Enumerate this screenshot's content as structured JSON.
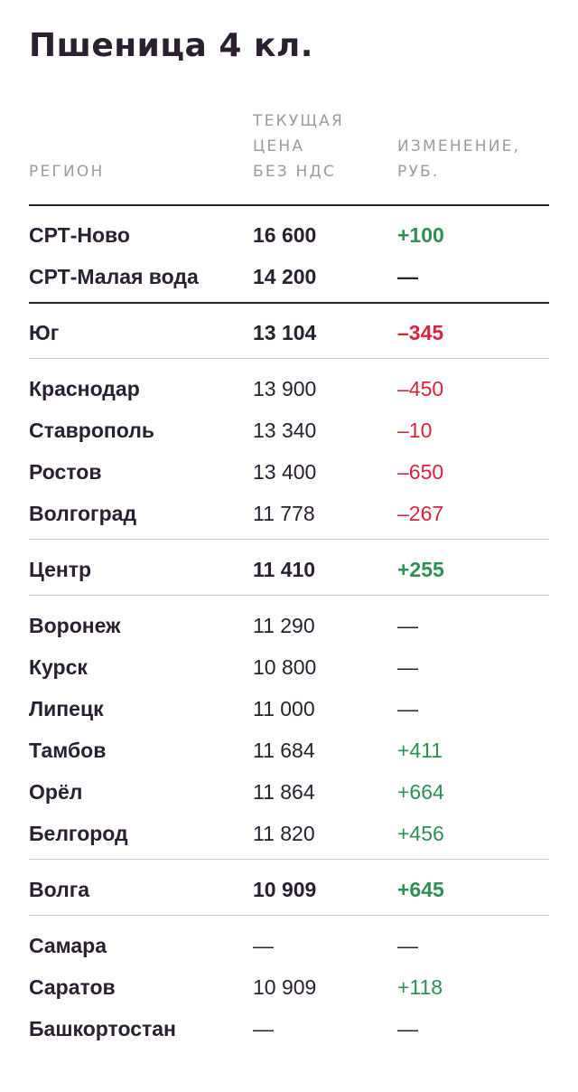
{
  "title": "Пшеница 4 кл.",
  "headers": {
    "region": "РЕГИОН",
    "price_line1": "ТЕКУЩАЯ",
    "price_line2": "ЦЕНА",
    "price_line3": "БЕЗ НДС",
    "change_line1": "ИЗМЕНЕНИЕ,",
    "change_line2": "РУБ."
  },
  "colors": {
    "positive": "#2f8f55",
    "negative": "#d8243c",
    "text": "#2a2030",
    "header": "#9a9aa2"
  },
  "rows": [
    {
      "region": "СРТ-Ново",
      "price": "16 600",
      "change": "+100",
      "bold": true,
      "trend": "pos"
    },
    {
      "region": "СРТ-Малая вода",
      "price": "14 200",
      "change": "—",
      "bold": true,
      "trend": "neu"
    },
    {
      "region": "Юг",
      "price": "13 104",
      "change": "–345",
      "bold": true,
      "trend": "neg"
    },
    {
      "region": "Краснодар",
      "price": "13 900",
      "change": "–450",
      "bold": false,
      "trend": "neg"
    },
    {
      "region": "Ставрополь",
      "price": "13 340",
      "change": "–10",
      "bold": false,
      "trend": "neg"
    },
    {
      "region": "Ростов",
      "price": "13 400",
      "change": "–650",
      "bold": false,
      "trend": "neg"
    },
    {
      "region": "Волгоград",
      "price": "11 778",
      "change": "–267",
      "bold": false,
      "trend": "neg"
    },
    {
      "region": "Центр",
      "price": "11 410",
      "change": "+255",
      "bold": true,
      "trend": "pos"
    },
    {
      "region": "Воронеж",
      "price": "11 290",
      "change": "—",
      "bold": false,
      "trend": "neu"
    },
    {
      "region": "Курск",
      "price": "10 800",
      "change": "—",
      "bold": false,
      "trend": "neu"
    },
    {
      "region": "Липецк",
      "price": "11 000",
      "change": "—",
      "bold": false,
      "trend": "neu"
    },
    {
      "region": "Тамбов",
      "price": "11 684",
      "change": "+411",
      "bold": false,
      "trend": "pos"
    },
    {
      "region": "Орёл",
      "price": "11 864",
      "change": "+664",
      "bold": false,
      "trend": "pos"
    },
    {
      "region": "Белгород",
      "price": "11 820",
      "change": "+456",
      "bold": false,
      "trend": "pos"
    },
    {
      "region": "Волга",
      "price": "10 909",
      "change": "+645",
      "bold": true,
      "trend": "pos"
    },
    {
      "region": "Самара",
      "price": "—",
      "change": "—",
      "bold": false,
      "trend": "neu"
    },
    {
      "region": "Саратов",
      "price": "10 909",
      "change": "+118",
      "bold": false,
      "trend": "pos"
    },
    {
      "region": "Башкортостан",
      "price": "—",
      "change": "—",
      "bold": false,
      "trend": "neu"
    }
  ]
}
